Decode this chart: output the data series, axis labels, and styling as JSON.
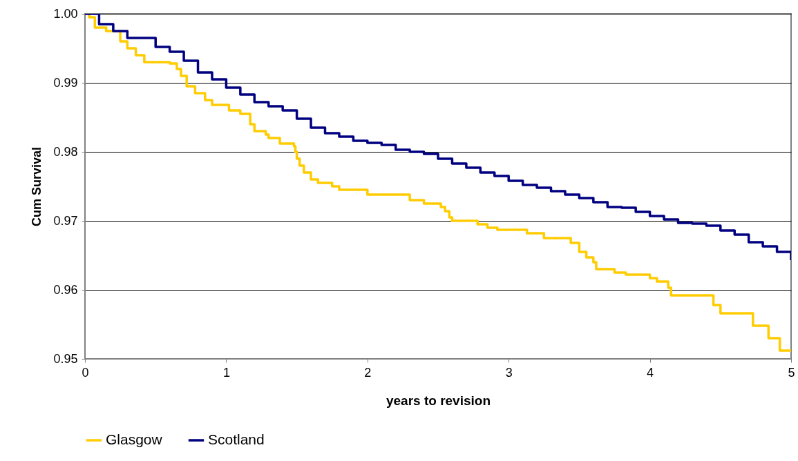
{
  "chart_data": {
    "type": "step",
    "xlabel": "years to revision",
    "ylabel": "Cum Survival",
    "xlim": [
      0,
      5
    ],
    "xticks": [
      0,
      1,
      2,
      3,
      4,
      5
    ],
    "ylim": [
      0.95,
      1.0
    ],
    "yticks": [
      {
        "value": 0.95,
        "label": "0.95"
      },
      {
        "value": 0.96,
        "label": "0.96"
      },
      {
        "value": 0.97,
        "label": "0.97"
      },
      {
        "value": 0.98,
        "label": "0.98"
      },
      {
        "value": 0.99,
        "label": "0.99"
      },
      {
        "value": 1.0,
        "label": "1.00"
      }
    ],
    "grid": "y",
    "legend": "bottom",
    "series": [
      {
        "name": "Glasgow",
        "color": "#ffcc00",
        "x": [
          0,
          0.03,
          0.07,
          0.15,
          0.25,
          0.3,
          0.36,
          0.42,
          0.6,
          0.65,
          0.68,
          0.72,
          0.78,
          0.85,
          0.9,
          1.02,
          1.1,
          1.17,
          1.2,
          1.28,
          1.3,
          1.38,
          1.48,
          1.49,
          1.5,
          1.52,
          1.55,
          1.6,
          1.65,
          1.75,
          1.8,
          2.0,
          2.3,
          2.4,
          2.52,
          2.55,
          2.58,
          2.6,
          2.78,
          2.85,
          2.92,
          3.13,
          3.25,
          3.44,
          3.5,
          3.55,
          3.6,
          3.62,
          3.75,
          3.83,
          4.0,
          4.05,
          4.13,
          4.15,
          4.45,
          4.5,
          4.73,
          4.84,
          4.92,
          5.0
        ],
        "values": [
          1.0,
          0.9995,
          0.998,
          0.9975,
          0.996,
          0.995,
          0.994,
          0.993,
          0.9928,
          0.992,
          0.991,
          0.9895,
          0.9885,
          0.9875,
          0.9868,
          0.986,
          0.9855,
          0.984,
          0.983,
          0.9825,
          0.982,
          0.9812,
          0.9808,
          0.98,
          0.979,
          0.978,
          0.977,
          0.976,
          0.9755,
          0.975,
          0.9745,
          0.9738,
          0.973,
          0.9725,
          0.972,
          0.9714,
          0.9705,
          0.97,
          0.9695,
          0.969,
          0.9687,
          0.9682,
          0.9675,
          0.9668,
          0.9655,
          0.9647,
          0.964,
          0.963,
          0.9625,
          0.9622,
          0.9617,
          0.9612,
          0.9603,
          0.9592,
          0.9578,
          0.9566,
          0.9548,
          0.953,
          0.9512,
          0.9512
        ]
      },
      {
        "name": "Scotland",
        "color": "#000080",
        "x": [
          0,
          0.1,
          0.2,
          0.3,
          0.5,
          0.6,
          0.7,
          0.8,
          0.9,
          1.0,
          1.1,
          1.2,
          1.3,
          1.4,
          1.5,
          1.6,
          1.7,
          1.8,
          1.9,
          2.0,
          2.1,
          2.2,
          2.3,
          2.4,
          2.5,
          2.6,
          2.7,
          2.8,
          2.9,
          3.0,
          3.1,
          3.2,
          3.3,
          3.4,
          3.5,
          3.6,
          3.7,
          3.8,
          3.9,
          4.0,
          4.1,
          4.2,
          4.3,
          4.4,
          4.5,
          4.6,
          4.7,
          4.8,
          4.9,
          5.0
        ],
        "values": [
          1.0,
          0.9985,
          0.9975,
          0.9965,
          0.9952,
          0.9945,
          0.9932,
          0.9915,
          0.9905,
          0.9893,
          0.9883,
          0.9872,
          0.9866,
          0.986,
          0.9848,
          0.9835,
          0.9827,
          0.9822,
          0.9816,
          0.9813,
          0.981,
          0.9803,
          0.98,
          0.9797,
          0.979,
          0.9783,
          0.9777,
          0.977,
          0.9765,
          0.9758,
          0.9752,
          0.9748,
          0.9743,
          0.9738,
          0.9733,
          0.9727,
          0.972,
          0.9719,
          0.9713,
          0.9707,
          0.9702,
          0.9697,
          0.9696,
          0.9693,
          0.9686,
          0.968,
          0.9669,
          0.9663,
          0.9655,
          0.9643
        ]
      }
    ]
  }
}
